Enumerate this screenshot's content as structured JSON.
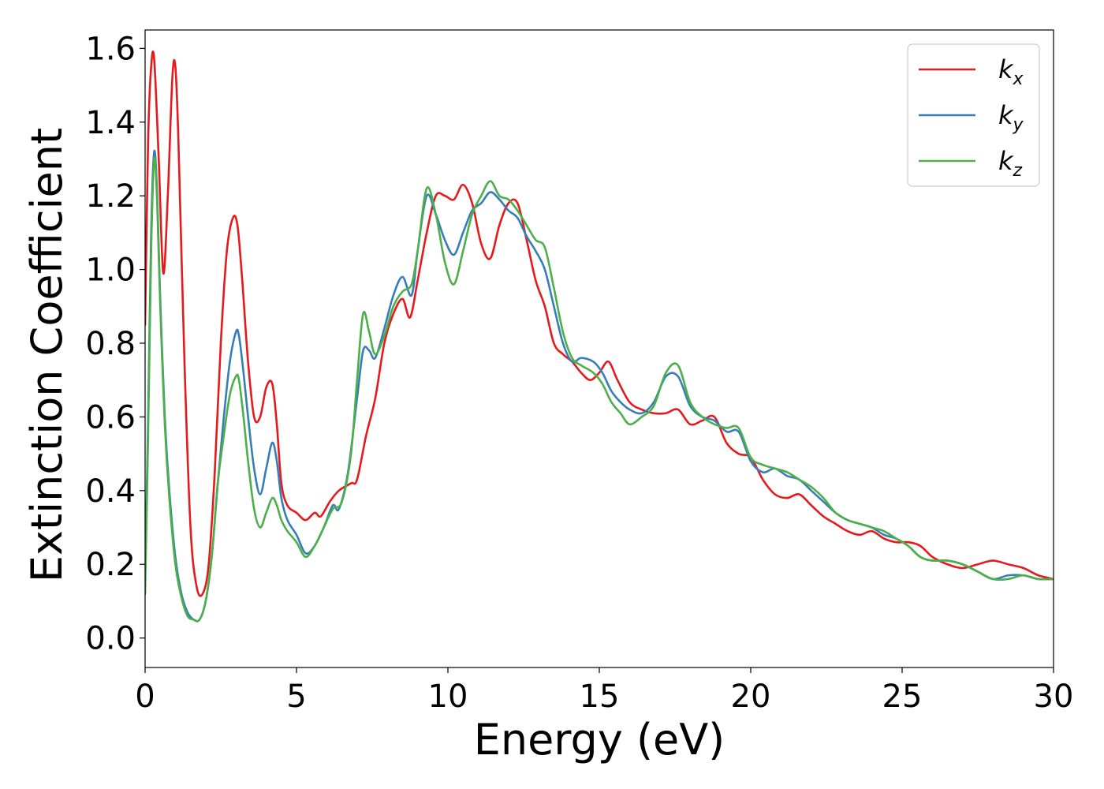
{
  "chart_data": {
    "type": "line",
    "title": "",
    "xlabel": "Energy (eV)",
    "ylabel": "Extinction Coefficient",
    "xlim": [
      0,
      30
    ],
    "ylim": [
      -0.08,
      1.65
    ],
    "xticks": [
      0,
      5,
      10,
      15,
      20,
      25,
      30
    ],
    "xtick_labels": [
      "0",
      "5",
      "10",
      "15",
      "20",
      "25",
      "30"
    ],
    "yticks": [
      0.0,
      0.2,
      0.4,
      0.6,
      0.8,
      1.0,
      1.2,
      1.4,
      1.6
    ],
    "ytick_labels": [
      "0.0",
      "0.2",
      "0.4",
      "0.6",
      "0.8",
      "1.0",
      "1.2",
      "1.4",
      "1.6"
    ],
    "grid": false,
    "legend_position": "top-right",
    "series": [
      {
        "name": "k",
        "name_sub": "x",
        "color": "#e41a1c",
        "x": [
          0,
          0.1,
          0.2,
          0.3,
          0.45,
          0.6,
          0.75,
          0.9,
          1.0,
          1.1,
          1.3,
          1.5,
          1.7,
          1.9,
          2.1,
          2.3,
          2.5,
          2.7,
          2.9,
          3.05,
          3.2,
          3.4,
          3.6,
          3.8,
          4.0,
          4.2,
          4.35,
          4.5,
          4.7,
          5.0,
          5.3,
          5.6,
          5.8,
          6.1,
          6.4,
          6.8,
          7.0,
          7.3,
          7.6,
          7.9,
          8.2,
          8.5,
          8.75,
          9.0,
          9.3,
          9.6,
          9.9,
          10.2,
          10.5,
          10.8,
          11.1,
          11.4,
          11.7,
          12.0,
          12.3,
          12.6,
          12.9,
          13.2,
          13.5,
          13.8,
          14.1,
          14.4,
          14.7,
          15.0,
          15.3,
          15.6,
          16.0,
          16.4,
          16.8,
          17.2,
          17.6,
          18.0,
          18.4,
          18.8,
          19.2,
          19.6,
          20.0,
          20.4,
          20.8,
          21.2,
          21.6,
          22.0,
          22.4,
          22.8,
          23.2,
          23.6,
          24.0,
          24.4,
          24.8,
          25.2,
          25.6,
          26.0,
          26.5,
          27.0,
          27.5,
          28.0,
          28.5,
          29.0,
          29.5,
          30.0
        ],
        "y": [
          0.85,
          1.35,
          1.55,
          1.57,
          1.3,
          0.99,
          1.2,
          1.52,
          1.55,
          1.35,
          0.75,
          0.3,
          0.14,
          0.12,
          0.2,
          0.45,
          0.8,
          1.05,
          1.14,
          1.12,
          0.98,
          0.75,
          0.6,
          0.6,
          0.68,
          0.69,
          0.58,
          0.42,
          0.36,
          0.34,
          0.32,
          0.34,
          0.33,
          0.37,
          0.4,
          0.42,
          0.43,
          0.55,
          0.65,
          0.8,
          0.88,
          0.92,
          0.87,
          0.97,
          1.1,
          1.2,
          1.2,
          1.19,
          1.23,
          1.18,
          1.07,
          1.03,
          1.12,
          1.18,
          1.18,
          1.08,
          0.97,
          0.9,
          0.8,
          0.77,
          0.75,
          0.72,
          0.7,
          0.72,
          0.75,
          0.7,
          0.64,
          0.62,
          0.61,
          0.61,
          0.62,
          0.58,
          0.59,
          0.6,
          0.53,
          0.5,
          0.49,
          0.43,
          0.39,
          0.38,
          0.39,
          0.36,
          0.33,
          0.31,
          0.29,
          0.28,
          0.29,
          0.27,
          0.26,
          0.26,
          0.25,
          0.22,
          0.2,
          0.19,
          0.2,
          0.21,
          0.2,
          0.19,
          0.17,
          0.16
        ]
      },
      {
        "name": "k",
        "name_sub": "y",
        "color": "#377eb8",
        "x": [
          0,
          0.1,
          0.2,
          0.3,
          0.4,
          0.5,
          0.65,
          0.8,
          1.0,
          1.2,
          1.4,
          1.6,
          1.8,
          2.0,
          2.2,
          2.4,
          2.6,
          2.8,
          3.0,
          3.1,
          3.25,
          3.4,
          3.6,
          3.8,
          4.0,
          4.2,
          4.35,
          4.5,
          4.7,
          5.0,
          5.3,
          5.6,
          5.9,
          6.2,
          6.4,
          6.7,
          7.0,
          7.2,
          7.4,
          7.6,
          7.9,
          8.2,
          8.5,
          8.8,
          9.0,
          9.3,
          9.6,
          9.9,
          10.2,
          10.5,
          10.8,
          11.1,
          11.4,
          11.7,
          12.0,
          12.3,
          12.6,
          12.9,
          13.2,
          13.5,
          13.8,
          14.1,
          14.4,
          14.8,
          15.1,
          15.4,
          15.7,
          16.0,
          16.4,
          16.8,
          17.2,
          17.6,
          18.0,
          18.4,
          18.8,
          19.2,
          19.6,
          20.0,
          20.4,
          20.8,
          21.2,
          21.6,
          22.0,
          22.4,
          22.8,
          23.2,
          23.6,
          24.0,
          24.4,
          24.8,
          25.2,
          25.6,
          26.0,
          26.5,
          27.0,
          27.5,
          28.0,
          28.5,
          29.0,
          29.5,
          30.0
        ],
        "y": [
          0.15,
          0.6,
          1.1,
          1.32,
          1.2,
          0.92,
          0.6,
          0.4,
          0.22,
          0.12,
          0.07,
          0.05,
          0.05,
          0.1,
          0.22,
          0.42,
          0.6,
          0.75,
          0.83,
          0.82,
          0.72,
          0.6,
          0.46,
          0.39,
          0.46,
          0.53,
          0.48,
          0.38,
          0.32,
          0.28,
          0.23,
          0.25,
          0.3,
          0.36,
          0.35,
          0.45,
          0.65,
          0.78,
          0.78,
          0.76,
          0.84,
          0.93,
          0.98,
          0.93,
          1.05,
          1.2,
          1.15,
          1.08,
          1.04,
          1.1,
          1.16,
          1.18,
          1.21,
          1.19,
          1.16,
          1.14,
          1.09,
          1.05,
          1.0,
          0.9,
          0.8,
          0.75,
          0.76,
          0.75,
          0.72,
          0.67,
          0.64,
          0.62,
          0.61,
          0.64,
          0.71,
          0.71,
          0.63,
          0.6,
          0.59,
          0.56,
          0.56,
          0.48,
          0.45,
          0.46,
          0.44,
          0.43,
          0.4,
          0.37,
          0.34,
          0.32,
          0.31,
          0.3,
          0.28,
          0.27,
          0.25,
          0.22,
          0.21,
          0.21,
          0.2,
          0.18,
          0.16,
          0.17,
          0.17,
          0.16,
          0.16
        ]
      },
      {
        "name": "k",
        "name_sub": "z",
        "color": "#4daf4a",
        "x": [
          0,
          0.1,
          0.2,
          0.3,
          0.4,
          0.5,
          0.65,
          0.8,
          1.0,
          1.2,
          1.4,
          1.6,
          1.8,
          2.0,
          2.2,
          2.4,
          2.6,
          2.8,
          3.0,
          3.1,
          3.25,
          3.4,
          3.6,
          3.8,
          4.0,
          4.2,
          4.35,
          4.5,
          4.7,
          5.0,
          5.3,
          5.6,
          5.9,
          6.2,
          6.5,
          6.8,
          7.0,
          7.2,
          7.4,
          7.6,
          7.9,
          8.2,
          8.5,
          8.8,
          9.0,
          9.3,
          9.6,
          9.9,
          10.2,
          10.5,
          10.8,
          11.1,
          11.4,
          11.7,
          12.0,
          12.3,
          12.6,
          12.9,
          13.2,
          13.5,
          13.8,
          14.1,
          14.4,
          14.8,
          15.1,
          15.4,
          15.7,
          16.0,
          16.4,
          16.8,
          17.2,
          17.6,
          18.0,
          18.4,
          18.8,
          19.2,
          19.6,
          20.0,
          20.4,
          20.8,
          21.2,
          21.6,
          22.0,
          22.4,
          22.8,
          23.2,
          23.6,
          24.0,
          24.4,
          24.8,
          25.2,
          25.6,
          26.0,
          26.5,
          27.0,
          27.5,
          28.0,
          28.5,
          29.0,
          29.5,
          30.0
        ],
        "y": [
          0.12,
          0.55,
          1.05,
          1.3,
          1.18,
          0.9,
          0.58,
          0.38,
          0.2,
          0.11,
          0.06,
          0.05,
          0.05,
          0.1,
          0.22,
          0.42,
          0.55,
          0.66,
          0.71,
          0.7,
          0.6,
          0.48,
          0.35,
          0.3,
          0.34,
          0.38,
          0.36,
          0.32,
          0.29,
          0.26,
          0.22,
          0.25,
          0.3,
          0.35,
          0.37,
          0.5,
          0.7,
          0.88,
          0.83,
          0.77,
          0.82,
          0.9,
          0.94,
          0.96,
          1.05,
          1.22,
          1.15,
          1.02,
          0.96,
          1.05,
          1.15,
          1.2,
          1.24,
          1.2,
          1.19,
          1.16,
          1.12,
          1.08,
          1.06,
          0.95,
          0.83,
          0.76,
          0.74,
          0.72,
          0.69,
          0.64,
          0.61,
          0.58,
          0.6,
          0.63,
          0.72,
          0.74,
          0.64,
          0.6,
          0.58,
          0.57,
          0.57,
          0.49,
          0.47,
          0.46,
          0.45,
          0.43,
          0.41,
          0.38,
          0.34,
          0.32,
          0.31,
          0.3,
          0.29,
          0.27,
          0.25,
          0.22,
          0.21,
          0.21,
          0.2,
          0.18,
          0.16,
          0.16,
          0.17,
          0.16,
          0.16
        ]
      }
    ]
  }
}
